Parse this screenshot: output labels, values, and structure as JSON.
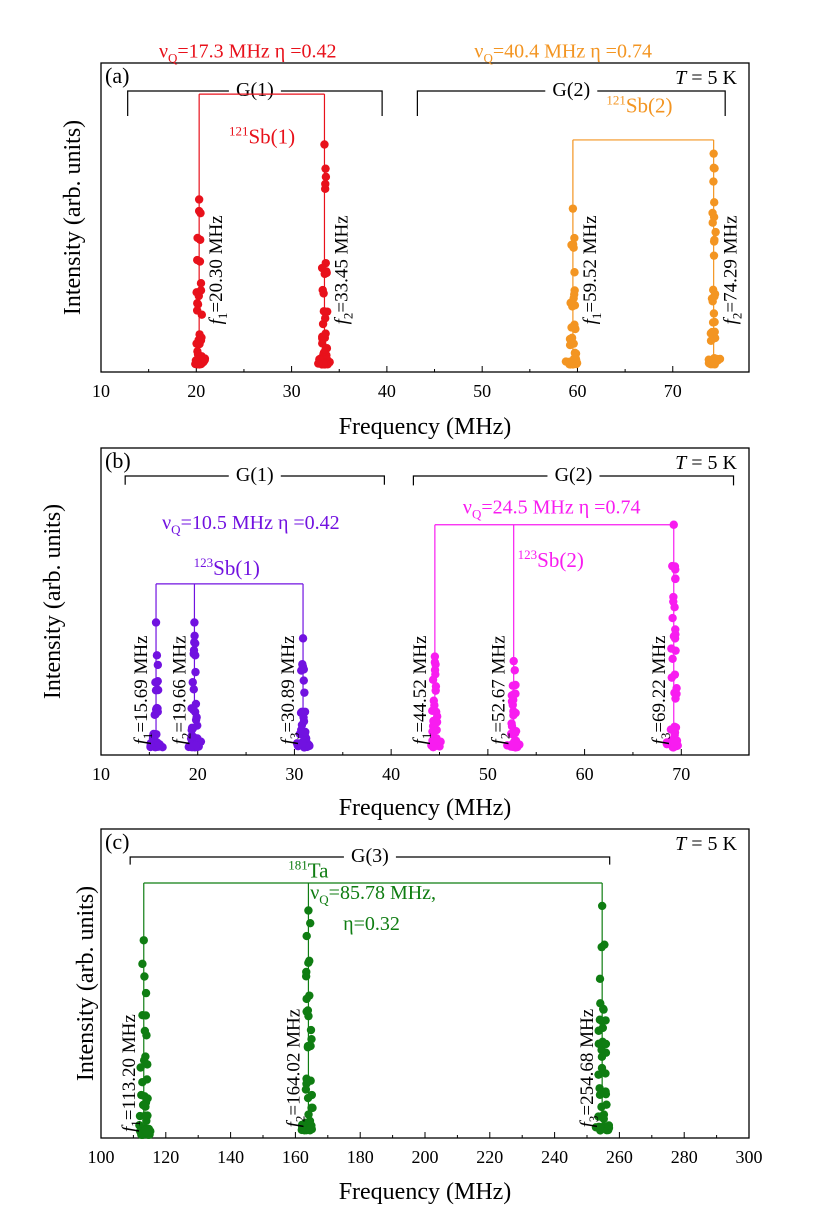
{
  "chart_data": [
    {
      "type": "scatter",
      "panel": "(a)",
      "temperature_label": "T = 5 K",
      "temperature_parts": [
        "T",
        " = 5 K"
      ],
      "xlabel": "Frequency (MHz)",
      "ylabel": "Intensity (arb. units)",
      "xlim": [
        10,
        78
      ],
      "xticks": [
        10,
        20,
        30,
        40,
        50,
        60,
        70
      ],
      "groups": [
        {
          "label": "G(1)",
          "x_start": 12.8,
          "x_end": 39.5,
          "side_drop": 0.7
        },
        {
          "label": "G(2)",
          "x_start": 43.2,
          "x_end": 75.5,
          "side_drop": 0.7
        }
      ],
      "series": [
        {
          "name": "121Sb(1)",
          "isotope_mass": "121",
          "isotope_element": "Sb(1)",
          "color": "#e8111b",
          "label_x": 26.9,
          "label_y": 0.985,
          "bracket_y": 1.2,
          "param_text": "νQ=17.3 MHz η =0.42",
          "param_x": 25.4,
          "param_y": 1.36,
          "lines": [
            {
              "x": 20.3,
              "freq_sub": "1",
              "freq_value": "=20.30 MHz",
              "peak": 0.74,
              "base": 0.02
            },
            {
              "x": 33.45,
              "freq_sub": "2",
              "freq_value": "=33.45 MHz",
              "peak": 0.98,
              "base": 0.02
            }
          ]
        },
        {
          "name": "121Sb(2)",
          "isotope_mass": "121",
          "isotope_element": "Sb(2)",
          "color": "#f39522",
          "label_x": 66.5,
          "label_y": 1.12,
          "bracket_y": 1.0,
          "param_text": "νQ=40.4 MHz η =0.74",
          "param_x": 58.5,
          "param_y": 1.36,
          "lines": [
            {
              "x": 59.52,
              "freq_sub": "1",
              "freq_value": "=59.52 MHz",
              "peak": 0.7,
              "base": 0.02
            },
            {
              "x": 74.29,
              "freq_sub": "2",
              "freq_value": "=74.29 MHz",
              "peak": 0.94,
              "base": 0.02
            }
          ]
        }
      ]
    },
    {
      "type": "scatter",
      "panel": "(b)",
      "temperature_label": "T = 5 K",
      "temperature_parts": [
        "T",
        " = 5 K"
      ],
      "xlabel": "Frequency (MHz)",
      "ylabel": "Intensity (arb. units)",
      "xlim": [
        10,
        77
      ],
      "xticks": [
        10,
        20,
        30,
        40,
        50,
        60,
        70
      ],
      "groups": [
        {
          "label": "G(1)",
          "x_start": 12.5,
          "x_end": 39.3,
          "side_drop": 0.16
        },
        {
          "label": "G(2)",
          "x_start": 42.3,
          "x_end": 75.4,
          "side_drop": 0.18
        }
      ],
      "series": [
        {
          "name": "123Sb(1)",
          "isotope_mass": "123",
          "isotope_element": "Sb(1)",
          "color": "#7112e0",
          "label_x": 23.0,
          "label_y": 0.78,
          "bracket_y": 0.74,
          "param_text": "νQ=10.5 MHz η =0.42",
          "param_x": 25.5,
          "param_y": 0.982,
          "lines": [
            {
              "x": 15.69,
              "freq_sub": "1",
              "freq_value": "=15.69 MHz",
              "peak": 0.57,
              "base": 0.02
            },
            {
              "x": 19.66,
              "freq_sub": "2",
              "freq_value": "=19.66 MHz",
              "peak": 0.57,
              "base": 0.02
            },
            {
              "x": 30.89,
              "freq_sub": "3",
              "freq_value": "=30.89 MHz",
              "peak": 0.5,
              "base": 0.02
            }
          ]
        },
        {
          "name": "123Sb(2)",
          "isotope_mass": "123",
          "isotope_element": "Sb(2)",
          "color": "#f81cf0",
          "label_x": 56.5,
          "label_y": 0.815,
          "bracket_y": 1.0,
          "param_text": "νQ=24.5 MHz η =0.74",
          "param_x": 56.6,
          "param_y": 1.05,
          "lines": [
            {
              "x": 44.52,
              "freq_sub": "1",
              "freq_value": "=44.52 MHz",
              "peak": 0.42,
              "base": 0.02
            },
            {
              "x": 52.67,
              "freq_sub": "2",
              "freq_value": "=52.67 MHz",
              "peak": 0.4,
              "base": 0.02
            },
            {
              "x": 69.22,
              "freq_sub": "3",
              "freq_value": "=69.22 MHz",
              "peak": 1.0,
              "base": 0.02
            }
          ]
        }
      ]
    },
    {
      "type": "scatter",
      "panel": "(c)",
      "temperature_label": "T = 5 K",
      "temperature_parts": [
        "T",
        " = 5 K"
      ],
      "xlabel": "Frequency (MHz)",
      "ylabel": "Intensity (arb. units)",
      "xlim": [
        100,
        300
      ],
      "xticks": [
        100,
        120,
        140,
        160,
        180,
        200,
        220,
        240,
        260,
        280,
        300
      ],
      "groups": [
        {
          "label": "G(3)",
          "x_start": 109,
          "x_end": 257,
          "side_drop": 0.12
        }
      ],
      "series": [
        {
          "name": "181Ta",
          "isotope_mass": "181",
          "isotope_element": "Ta",
          "color": "#0f7d12",
          "label_x": 164,
          "label_y": 1.125,
          "bracket_y": 1.1,
          "param_text": "νQ=85.78 MHz,",
          "param_text_2": "η=0.32",
          "param_x": 184,
          "param_y": 1.03,
          "param_y_2": 0.895,
          "lines": [
            {
              "x": 113.2,
              "freq_sub": "1",
              "freq_value": "=113.20 MHz",
              "peak": 0.85,
              "base": 0.0
            },
            {
              "x": 164.02,
              "freq_sub": "2",
              "freq_value": "=164.02 MHz",
              "peak": 0.98,
              "base": 0.02
            },
            {
              "x": 254.68,
              "freq_sub": "3",
              "freq_value": "=254.68 MHz",
              "peak": 1.0,
              "base": 0.02
            }
          ]
        }
      ]
    }
  ]
}
